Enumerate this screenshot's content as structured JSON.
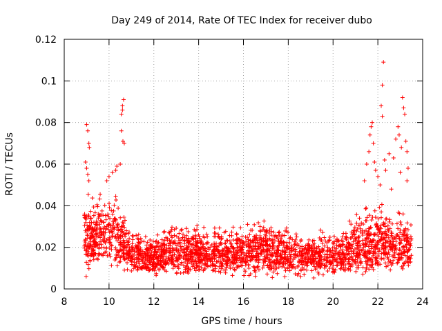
{
  "chart_data": {
    "type": "scatter",
    "title": "Day 249 of 2014, Rate Of TEC Index for receiver dubo",
    "xlabel": "GPS time / hours",
    "ylabel": "ROTI / TECUs",
    "xlim": [
      8,
      24
    ],
    "ylim": [
      0,
      0.12
    ],
    "xticks": [
      8,
      10,
      12,
      14,
      16,
      18,
      20,
      22,
      24
    ],
    "yticks": [
      0,
      0.02,
      0.04,
      0.06,
      0.08,
      0.1,
      0.12
    ],
    "xtick_labels": [
      "8",
      "10",
      "12",
      "14",
      "16",
      "18",
      "20",
      "22",
      "24"
    ],
    "ytick_labels": [
      "0",
      "0.02",
      "0.04",
      "0.06",
      "0.08",
      "0.1",
      "0.12"
    ],
    "grid": true,
    "marker": "+",
    "color": "#ff0000",
    "data_x_range": [
      8.9,
      23.5
    ],
    "envelope": [
      {
        "x": 8.9,
        "lo": 0.008,
        "hi": 0.045
      },
      {
        "x": 9.5,
        "lo": 0.008,
        "hi": 0.045
      },
      {
        "x": 10.2,
        "lo": 0.008,
        "hi": 0.047
      },
      {
        "x": 10.7,
        "lo": 0.007,
        "hi": 0.038
      },
      {
        "x": 11.0,
        "lo": 0.006,
        "hi": 0.028
      },
      {
        "x": 12.0,
        "lo": 0.005,
        "hi": 0.027
      },
      {
        "x": 13.0,
        "lo": 0.005,
        "hi": 0.033
      },
      {
        "x": 14.0,
        "lo": 0.005,
        "hi": 0.03
      },
      {
        "x": 15.0,
        "lo": 0.005,
        "hi": 0.032
      },
      {
        "x": 16.0,
        "lo": 0.005,
        "hi": 0.03
      },
      {
        "x": 16.8,
        "lo": 0.005,
        "hi": 0.035
      },
      {
        "x": 17.5,
        "lo": 0.005,
        "hi": 0.032
      },
      {
        "x": 18.5,
        "lo": 0.005,
        "hi": 0.028
      },
      {
        "x": 19.5,
        "lo": 0.005,
        "hi": 0.028
      },
      {
        "x": 20.5,
        "lo": 0.005,
        "hi": 0.033
      },
      {
        "x": 21.5,
        "lo": 0.006,
        "hi": 0.04
      },
      {
        "x": 22.5,
        "lo": 0.006,
        "hi": 0.04
      },
      {
        "x": 23.5,
        "lo": 0.007,
        "hi": 0.035
      }
    ],
    "outliers": [
      {
        "x": 8.95,
        "y": 0.061
      },
      {
        "x": 9.0,
        "y": 0.079
      },
      {
        "x": 9.05,
        "y": 0.076
      },
      {
        "x": 9.1,
        "y": 0.07
      },
      {
        "x": 9.12,
        "y": 0.068
      },
      {
        "x": 9.0,
        "y": 0.058
      },
      {
        "x": 9.1,
        "y": 0.052
      },
      {
        "x": 9.05,
        "y": 0.055
      },
      {
        "x": 8.98,
        "y": 0.006
      },
      {
        "x": 9.9,
        "y": 0.052
      },
      {
        "x": 10.0,
        "y": 0.054
      },
      {
        "x": 10.15,
        "y": 0.056
      },
      {
        "x": 10.3,
        "y": 0.057
      },
      {
        "x": 10.35,
        "y": 0.059
      },
      {
        "x": 10.5,
        "y": 0.06
      },
      {
        "x": 10.55,
        "y": 0.084
      },
      {
        "x": 10.6,
        "y": 0.088
      },
      {
        "x": 10.65,
        "y": 0.091
      },
      {
        "x": 10.6,
        "y": 0.086
      },
      {
        "x": 10.62,
        "y": 0.071
      },
      {
        "x": 10.55,
        "y": 0.076
      },
      {
        "x": 10.68,
        "y": 0.07
      },
      {
        "x": 21.4,
        "y": 0.052
      },
      {
        "x": 21.5,
        "y": 0.06
      },
      {
        "x": 21.6,
        "y": 0.066
      },
      {
        "x": 21.65,
        "y": 0.074
      },
      {
        "x": 21.7,
        "y": 0.078
      },
      {
        "x": 21.75,
        "y": 0.08
      },
      {
        "x": 21.8,
        "y": 0.07
      },
      {
        "x": 21.85,
        "y": 0.061
      },
      {
        "x": 21.9,
        "y": 0.057
      },
      {
        "x": 22.0,
        "y": 0.054
      },
      {
        "x": 22.1,
        "y": 0.05
      },
      {
        "x": 22.15,
        "y": 0.088
      },
      {
        "x": 22.2,
        "y": 0.098
      },
      {
        "x": 22.25,
        "y": 0.109
      },
      {
        "x": 22.2,
        "y": 0.083
      },
      {
        "x": 22.3,
        "y": 0.062
      },
      {
        "x": 22.35,
        "y": 0.057
      },
      {
        "x": 22.5,
        "y": 0.065
      },
      {
        "x": 22.7,
        "y": 0.063
      },
      {
        "x": 22.8,
        "y": 0.072
      },
      {
        "x": 22.9,
        "y": 0.078
      },
      {
        "x": 22.95,
        "y": 0.074
      },
      {
        "x": 23.05,
        "y": 0.068
      },
      {
        "x": 23.1,
        "y": 0.092
      },
      {
        "x": 23.15,
        "y": 0.087
      },
      {
        "x": 23.2,
        "y": 0.084
      },
      {
        "x": 23.25,
        "y": 0.071
      },
      {
        "x": 23.3,
        "y": 0.066
      },
      {
        "x": 23.35,
        "y": 0.058
      },
      {
        "x": 23.3,
        "y": 0.052
      },
      {
        "x": 23.0,
        "y": 0.056
      },
      {
        "x": 22.6,
        "y": 0.048
      }
    ]
  }
}
